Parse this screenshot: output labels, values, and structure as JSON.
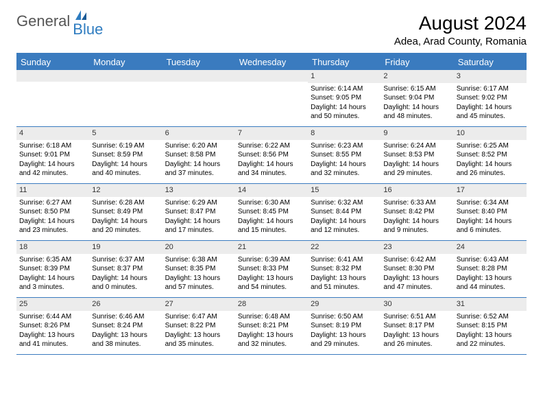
{
  "brand": {
    "general": "General",
    "blue": "Blue"
  },
  "title": "August 2024",
  "location": "Adea, Arad County, Romania",
  "colors": {
    "header_bg": "#3a7bbf",
    "header_text": "#ffffff",
    "daynum_bg": "#ececec",
    "border": "#3a7bbf",
    "logo_blue": "#2e7cc0",
    "logo_gray": "#555555"
  },
  "dayNames": [
    "Sunday",
    "Monday",
    "Tuesday",
    "Wednesday",
    "Thursday",
    "Friday",
    "Saturday"
  ],
  "weeks": [
    [
      null,
      null,
      null,
      null,
      {
        "n": "1",
        "sr": "6:14 AM",
        "ss": "9:05 PM",
        "dl1": "Daylight: 14 hours",
        "dl2": "and 50 minutes."
      },
      {
        "n": "2",
        "sr": "6:15 AM",
        "ss": "9:04 PM",
        "dl1": "Daylight: 14 hours",
        "dl2": "and 48 minutes."
      },
      {
        "n": "3",
        "sr": "6:17 AM",
        "ss": "9:02 PM",
        "dl1": "Daylight: 14 hours",
        "dl2": "and 45 minutes."
      }
    ],
    [
      {
        "n": "4",
        "sr": "6:18 AM",
        "ss": "9:01 PM",
        "dl1": "Daylight: 14 hours",
        "dl2": "and 42 minutes."
      },
      {
        "n": "5",
        "sr": "6:19 AM",
        "ss": "8:59 PM",
        "dl1": "Daylight: 14 hours",
        "dl2": "and 40 minutes."
      },
      {
        "n": "6",
        "sr": "6:20 AM",
        "ss": "8:58 PM",
        "dl1": "Daylight: 14 hours",
        "dl2": "and 37 minutes."
      },
      {
        "n": "7",
        "sr": "6:22 AM",
        "ss": "8:56 PM",
        "dl1": "Daylight: 14 hours",
        "dl2": "and 34 minutes."
      },
      {
        "n": "8",
        "sr": "6:23 AM",
        "ss": "8:55 PM",
        "dl1": "Daylight: 14 hours",
        "dl2": "and 32 minutes."
      },
      {
        "n": "9",
        "sr": "6:24 AM",
        "ss": "8:53 PM",
        "dl1": "Daylight: 14 hours",
        "dl2": "and 29 minutes."
      },
      {
        "n": "10",
        "sr": "6:25 AM",
        "ss": "8:52 PM",
        "dl1": "Daylight: 14 hours",
        "dl2": "and 26 minutes."
      }
    ],
    [
      {
        "n": "11",
        "sr": "6:27 AM",
        "ss": "8:50 PM",
        "dl1": "Daylight: 14 hours",
        "dl2": "and 23 minutes."
      },
      {
        "n": "12",
        "sr": "6:28 AM",
        "ss": "8:49 PM",
        "dl1": "Daylight: 14 hours",
        "dl2": "and 20 minutes."
      },
      {
        "n": "13",
        "sr": "6:29 AM",
        "ss": "8:47 PM",
        "dl1": "Daylight: 14 hours",
        "dl2": "and 17 minutes."
      },
      {
        "n": "14",
        "sr": "6:30 AM",
        "ss": "8:45 PM",
        "dl1": "Daylight: 14 hours",
        "dl2": "and 15 minutes."
      },
      {
        "n": "15",
        "sr": "6:32 AM",
        "ss": "8:44 PM",
        "dl1": "Daylight: 14 hours",
        "dl2": "and 12 minutes."
      },
      {
        "n": "16",
        "sr": "6:33 AM",
        "ss": "8:42 PM",
        "dl1": "Daylight: 14 hours",
        "dl2": "and 9 minutes."
      },
      {
        "n": "17",
        "sr": "6:34 AM",
        "ss": "8:40 PM",
        "dl1": "Daylight: 14 hours",
        "dl2": "and 6 minutes."
      }
    ],
    [
      {
        "n": "18",
        "sr": "6:35 AM",
        "ss": "8:39 PM",
        "dl1": "Daylight: 14 hours",
        "dl2": "and 3 minutes."
      },
      {
        "n": "19",
        "sr": "6:37 AM",
        "ss": "8:37 PM",
        "dl1": "Daylight: 14 hours",
        "dl2": "and 0 minutes."
      },
      {
        "n": "20",
        "sr": "6:38 AM",
        "ss": "8:35 PM",
        "dl1": "Daylight: 13 hours",
        "dl2": "and 57 minutes."
      },
      {
        "n": "21",
        "sr": "6:39 AM",
        "ss": "8:33 PM",
        "dl1": "Daylight: 13 hours",
        "dl2": "and 54 minutes."
      },
      {
        "n": "22",
        "sr": "6:41 AM",
        "ss": "8:32 PM",
        "dl1": "Daylight: 13 hours",
        "dl2": "and 51 minutes."
      },
      {
        "n": "23",
        "sr": "6:42 AM",
        "ss": "8:30 PM",
        "dl1": "Daylight: 13 hours",
        "dl2": "and 47 minutes."
      },
      {
        "n": "24",
        "sr": "6:43 AM",
        "ss": "8:28 PM",
        "dl1": "Daylight: 13 hours",
        "dl2": "and 44 minutes."
      }
    ],
    [
      {
        "n": "25",
        "sr": "6:44 AM",
        "ss": "8:26 PM",
        "dl1": "Daylight: 13 hours",
        "dl2": "and 41 minutes."
      },
      {
        "n": "26",
        "sr": "6:46 AM",
        "ss": "8:24 PM",
        "dl1": "Daylight: 13 hours",
        "dl2": "and 38 minutes."
      },
      {
        "n": "27",
        "sr": "6:47 AM",
        "ss": "8:22 PM",
        "dl1": "Daylight: 13 hours",
        "dl2": "and 35 minutes."
      },
      {
        "n": "28",
        "sr": "6:48 AM",
        "ss": "8:21 PM",
        "dl1": "Daylight: 13 hours",
        "dl2": "and 32 minutes."
      },
      {
        "n": "29",
        "sr": "6:50 AM",
        "ss": "8:19 PM",
        "dl1": "Daylight: 13 hours",
        "dl2": "and 29 minutes."
      },
      {
        "n": "30",
        "sr": "6:51 AM",
        "ss": "8:17 PM",
        "dl1": "Daylight: 13 hours",
        "dl2": "and 26 minutes."
      },
      {
        "n": "31",
        "sr": "6:52 AM",
        "ss": "8:15 PM",
        "dl1": "Daylight: 13 hours",
        "dl2": "and 22 minutes."
      }
    ]
  ],
  "labels": {
    "sunrise": "Sunrise:",
    "sunset": "Sunset:"
  }
}
